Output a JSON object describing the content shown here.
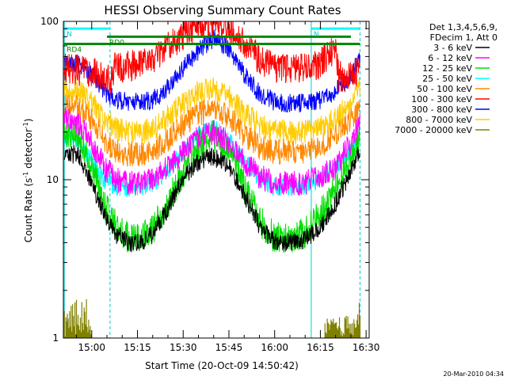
{
  "chart_data": {
    "type": "line",
    "title": "HESSI Observing Summary Count Rates",
    "xlabel": "Start Time (20-Oct-09 14:50:42)",
    "ylabel_main": "Count Rate (s",
    "ylabel_sup1": "-1",
    "ylabel_mid": " detector",
    "ylabel_sup2": "-1",
    "ylabel_end": ")",
    "y_scale": "log",
    "ylim": [
      1,
      100
    ],
    "xlim": [
      "14:50:42",
      "16:31:00"
    ],
    "x_ticks": [
      "15:00",
      "15:15",
      "15:30",
      "15:45",
      "16:00",
      "16:15",
      "16:30"
    ],
    "y_ticks": [
      "1",
      "10",
      "100"
    ],
    "legend_header": [
      "Det 1,3,4,5,6,9,",
      "FDecim 1, Att 0"
    ],
    "legend_placement": "right",
    "series": [
      {
        "name": "3 - 6 keV",
        "color": "#000000",
        "x": [
          "14:51",
          "14:56",
          "15:00",
          "15:04",
          "15:08",
          "15:12",
          "15:16",
          "15:20",
          "15:25",
          "15:30",
          "15:35",
          "15:40",
          "15:45",
          "15:50",
          "15:55",
          "16:00",
          "16:05",
          "16:10",
          "16:15",
          "16:20",
          "16:25",
          "16:28"
        ],
        "y": [
          15,
          14,
          9,
          6,
          4.5,
          4,
          4,
          4.5,
          6.5,
          10,
          13,
          14,
          12,
          8,
          5,
          4,
          4,
          4.2,
          5,
          7,
          11,
          16
        ]
      },
      {
        "name": "6 - 12 keV",
        "color": "#ff00ff",
        "x": [
          "14:51",
          "14:56",
          "15:00",
          "15:04",
          "15:08",
          "15:12",
          "15:16",
          "15:20",
          "15:25",
          "15:30",
          "15:35",
          "15:40",
          "15:45",
          "15:50",
          "15:55",
          "16:00",
          "16:05",
          "16:10",
          "16:15",
          "16:20",
          "16:25",
          "16:28"
        ],
        "y": [
          24,
          22,
          17,
          12,
          10,
          9.5,
          9.5,
          10,
          12,
          15,
          18.5,
          20,
          17,
          13,
          10.5,
          9.5,
          9.5,
          9.5,
          10.5,
          12,
          17,
          23
        ]
      },
      {
        "name": "12 - 25 keV",
        "color": "#00dd00",
        "x": [
          "14:51",
          "14:56",
          "15:00",
          "15:04",
          "15:08",
          "15:12",
          "15:16",
          "15:20",
          "15:25",
          "15:30",
          "15:35",
          "15:40",
          "15:45",
          "15:50",
          "15:55",
          "16:00",
          "16:05",
          "16:10",
          "16:15",
          "16:20",
          "16:25",
          "16:28"
        ],
        "y": [
          20,
          18,
          12,
          7,
          5,
          4.3,
          4.3,
          4.8,
          7,
          11,
          16,
          19,
          15,
          9,
          5.5,
          4.3,
          4.3,
          4.6,
          6,
          9,
          13,
          19
        ]
      },
      {
        "name": "25 - 50 keV",
        "color": "#00ffff",
        "x": [
          "14:51",
          "14:56",
          "15:00",
          "15:04",
          "15:08",
          "15:12",
          "15:16",
          "15:20",
          "15:25",
          "15:30",
          "15:35",
          "15:40",
          "15:45",
          "15:50",
          "15:55",
          "16:00",
          "16:05",
          "16:10",
          "16:15",
          "16:20",
          "16:25",
          "16:28"
        ],
        "y": [
          19,
          17,
          13,
          10,
          9,
          8.8,
          9,
          9.5,
          11.5,
          15,
          19,
          21,
          18,
          13,
          10,
          9,
          9,
          9.2,
          10,
          12,
          15,
          19
        ]
      },
      {
        "name": "50 - 100 keV",
        "color": "#ff8800",
        "x": [
          "14:51",
          "14:56",
          "15:00",
          "15:04",
          "15:08",
          "15:12",
          "15:16",
          "15:20",
          "15:25",
          "15:30",
          "15:35",
          "15:40",
          "15:45",
          "15:50",
          "15:55",
          "16:00",
          "16:05",
          "16:10",
          "16:15",
          "16:20",
          "16:25",
          "16:28"
        ],
        "y": [
          30,
          28,
          24,
          18,
          15,
          14.5,
          14.5,
          15,
          18,
          22,
          26,
          28,
          25,
          19,
          16,
          15,
          15,
          15,
          16,
          19,
          24,
          30
        ]
      },
      {
        "name": "100 - 300 keV",
        "color": "#ff0000",
        "x": [
          "14:51",
          "14:56",
          "15:00",
          "15:04",
          "15:07",
          "15:07.5",
          "15:12",
          "15:16",
          "15:20",
          "15:25",
          "15:30",
          "15:35",
          "15:40",
          "15:45",
          "15:50",
          "15:55",
          "16:00",
          "16:05",
          "16:10",
          "16:15",
          "16:20",
          "16:21",
          "16:25",
          "16:28"
        ],
        "y": [
          50,
          49,
          48,
          45,
          42,
          52,
          52,
          53,
          57,
          68,
          82,
          95,
          100,
          92,
          72,
          58,
          52,
          50,
          50,
          54,
          68,
          45,
          44,
          50
        ]
      },
      {
        "name": "300 - 800 keV",
        "color": "#0000ff",
        "x": [
          "14:51",
          "14:56",
          "15:00",
          "15:04",
          "15:08",
          "15:12",
          "15:16",
          "15:20",
          "15:25",
          "15:30",
          "15:35",
          "15:40",
          "15:45",
          "15:50",
          "15:55",
          "16:00",
          "16:05",
          "16:10",
          "16:15",
          "16:20",
          "16:25",
          "16:28"
        ],
        "y": [
          55,
          54,
          47,
          36,
          32,
          31,
          31,
          32,
          38,
          50,
          65,
          78,
          66,
          46,
          35,
          31,
          30.5,
          30.5,
          32,
          36,
          45,
          58
        ]
      },
      {
        "name": "800 - 7000 keV",
        "color": "#ffcc00",
        "x": [
          "14:51",
          "14:56",
          "15:00",
          "15:04",
          "15:08",
          "15:12",
          "15:16",
          "15:20",
          "15:25",
          "15:30",
          "15:35",
          "15:40",
          "15:45",
          "15:50",
          "15:55",
          "16:00",
          "16:05",
          "16:10",
          "16:15",
          "16:20",
          "16:25",
          "16:28"
        ],
        "y": [
          38,
          36,
          30,
          24,
          21,
          20,
          20,
          21,
          25,
          30,
          35,
          37,
          33,
          26,
          22,
          20,
          20,
          20,
          21,
          24,
          30,
          38
        ]
      },
      {
        "name": "7000 - 20000 keV",
        "color": "#808000",
        "x": [
          "14:51",
          "14:52",
          "14:54",
          "14:56",
          "14:58",
          "15:00",
          "16:27",
          "16:28"
        ],
        "y": [
          2,
          1.8,
          2,
          1.6,
          1.9,
          1,
          1.4,
          2
        ]
      }
    ],
    "segments": [
      {
        "label": "N",
        "color": "#00ffff",
        "y": 90,
        "x_start": "14:51",
        "x_end": "15:06"
      },
      {
        "label": "N",
        "color": "#00ffff",
        "y": 90,
        "x_start": "16:12",
        "x_end": "16:28"
      },
      {
        "label": "RD0",
        "color": "#008800",
        "y": 80,
        "x_start": "15:05",
        "x_end": "16:25"
      },
      {
        "label": "RD4",
        "color": "#008800",
        "y": 72,
        "x_start": "14:51",
        "x_end": "16:28"
      }
    ],
    "vertical_markers": [
      {
        "x": "15:06",
        "color": "#00cccc",
        "style": "dashed"
      },
      {
        "x": "16:12",
        "color": "#00cccc",
        "style": "solid"
      },
      {
        "x": "16:28",
        "color": "#00cccc",
        "style": "dashed"
      },
      {
        "x": "14:51",
        "color": "#00cccc",
        "style": "solid"
      }
    ],
    "timestamp": "20-Mar-2010 04:34"
  }
}
